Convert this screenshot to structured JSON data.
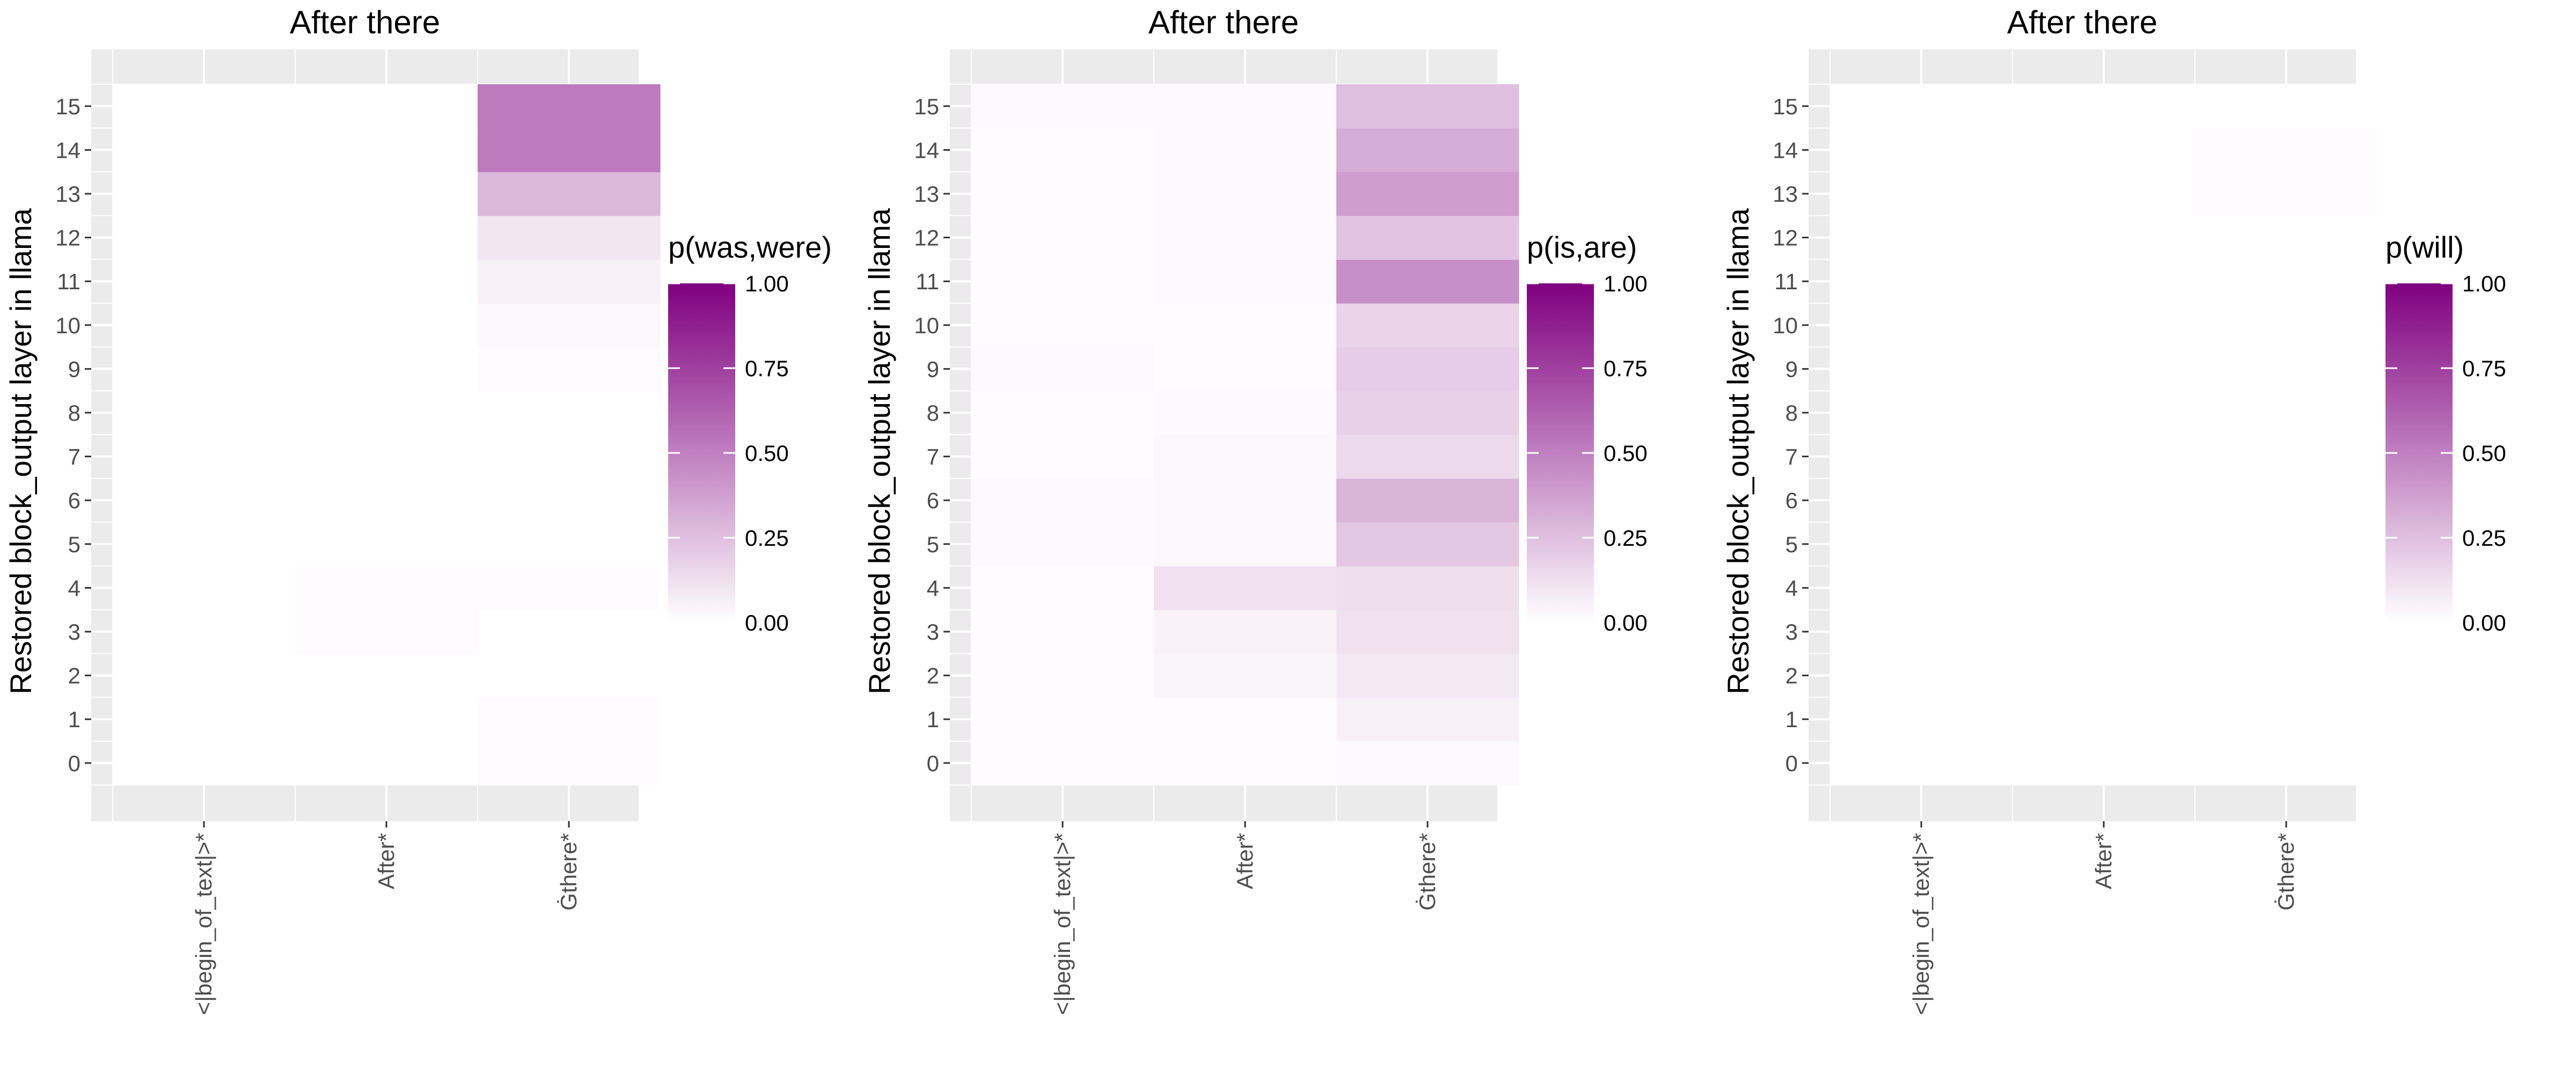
{
  "chart_data": [
    {
      "type": "heatmap",
      "title": "After there",
      "ylabel": "Restored block_output layer in llama",
      "xlabel": "",
      "x_categories": [
        "<|begin_of_text|>*",
        "After*",
        "Ġthere*"
      ],
      "y_categories": [
        "0",
        "1",
        "2",
        "3",
        "4",
        "5",
        "6",
        "7",
        "8",
        "9",
        "10",
        "11",
        "12",
        "13",
        "14",
        "15"
      ],
      "legend_title": "p(was,were)",
      "legend_ticks": [
        "0.00",
        "0.25",
        "0.50",
        "0.75",
        "1.00"
      ],
      "value_range": [
        0,
        1
      ],
      "grid": true,
      "legend_position": "right",
      "values": [
        [
          0.0,
          0.0,
          0.01
        ],
        [
          0.0,
          0.0,
          0.01
        ],
        [
          0.0,
          0.0,
          0.0
        ],
        [
          0.0,
          0.01,
          0.0
        ],
        [
          0.0,
          0.01,
          0.01
        ],
        [
          0.0,
          0.0,
          0.0
        ],
        [
          0.0,
          0.0,
          0.0
        ],
        [
          0.0,
          0.0,
          0.0
        ],
        [
          0.0,
          0.0,
          0.0
        ],
        [
          0.0,
          0.0,
          0.01
        ],
        [
          0.0,
          0.0,
          0.03
        ],
        [
          0.0,
          0.0,
          0.06
        ],
        [
          0.0,
          0.0,
          0.1
        ],
        [
          0.0,
          0.0,
          0.28
        ],
        [
          0.0,
          0.0,
          0.52
        ],
        [
          0.0,
          0.0,
          0.52
        ]
      ]
    },
    {
      "type": "heatmap",
      "title": "After there",
      "ylabel": "Restored block_output layer in llama",
      "xlabel": "",
      "x_categories": [
        "<|begin_of_text|>*",
        "After*",
        "Ġthere*"
      ],
      "y_categories": [
        "0",
        "1",
        "2",
        "3",
        "4",
        "5",
        "6",
        "7",
        "8",
        "9",
        "10",
        "11",
        "12",
        "13",
        "14",
        "15"
      ],
      "legend_title": "p(is,are)",
      "legend_ticks": [
        "0.00",
        "0.25",
        "0.50",
        "0.75",
        "1.00"
      ],
      "value_range": [
        0,
        1
      ],
      "grid": true,
      "legend_position": "right",
      "values": [
        [
          0.01,
          0.01,
          0.02
        ],
        [
          0.01,
          0.01,
          0.06
        ],
        [
          0.01,
          0.04,
          0.09
        ],
        [
          0.01,
          0.05,
          0.12
        ],
        [
          0.01,
          0.12,
          0.13
        ],
        [
          0.02,
          0.03,
          0.22
        ],
        [
          0.02,
          0.03,
          0.29
        ],
        [
          0.01,
          0.03,
          0.15
        ],
        [
          0.01,
          0.02,
          0.18
        ],
        [
          0.02,
          0.01,
          0.2
        ],
        [
          0.01,
          0.01,
          0.17
        ],
        [
          0.01,
          0.02,
          0.44
        ],
        [
          0.01,
          0.02,
          0.23
        ],
        [
          0.01,
          0.02,
          0.38
        ],
        [
          0.01,
          0.02,
          0.32
        ],
        [
          0.02,
          0.02,
          0.25
        ]
      ]
    },
    {
      "type": "heatmap",
      "title": "After there",
      "ylabel": "Restored block_output layer in llama",
      "xlabel": "",
      "x_categories": [
        "<|begin_of_text|>*",
        "After*",
        "Ġthere*"
      ],
      "y_categories": [
        "0",
        "1",
        "2",
        "3",
        "4",
        "5",
        "6",
        "7",
        "8",
        "9",
        "10",
        "11",
        "12",
        "13",
        "14",
        "15"
      ],
      "legend_title": "p(will)",
      "legend_ticks": [
        "0.00",
        "0.25",
        "0.50",
        "0.75",
        "1.00"
      ],
      "value_range": [
        0,
        1
      ],
      "grid": true,
      "legend_position": "right",
      "values": [
        [
          0.0,
          0.0,
          0.0
        ],
        [
          0.0,
          0.0,
          0.0
        ],
        [
          0.0,
          0.0,
          0.0
        ],
        [
          0.0,
          0.0,
          0.0
        ],
        [
          0.0,
          0.0,
          0.0
        ],
        [
          0.0,
          0.0,
          0.0
        ],
        [
          0.0,
          0.0,
          0.0
        ],
        [
          0.0,
          0.0,
          0.0
        ],
        [
          0.0,
          0.0,
          0.0
        ],
        [
          0.0,
          0.0,
          0.0
        ],
        [
          0.0,
          0.0,
          0.0
        ],
        [
          0.0,
          0.0,
          0.0
        ],
        [
          0.0,
          0.0,
          0.0
        ],
        [
          0.0,
          0.0,
          0.01
        ],
        [
          0.0,
          0.0,
          0.01
        ],
        [
          0.0,
          0.0,
          0.0
        ]
      ]
    }
  ],
  "colors": {
    "panel_background": "#ebebeb",
    "grid_line": "#ffffff",
    "low": "#ffffff",
    "high": "#800080"
  }
}
